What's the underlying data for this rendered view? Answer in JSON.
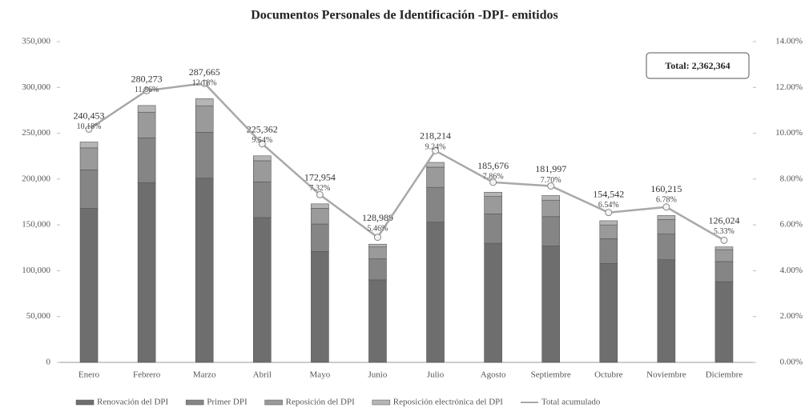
{
  "chart_data": {
    "type": "stacked_bar_line",
    "title": "Documentos Personales de Identificación -DPI- emitidos",
    "annotation": "Total: 2,362,364",
    "categories": [
      "Enero",
      "Febrero",
      "Marzo",
      "Abril",
      "Mayo",
      "Junio",
      "Julio",
      "Agosto",
      "Septiembre",
      "Octubre",
      "Noviembre",
      "Diciembre"
    ],
    "series": [
      {
        "name": "Renovación del DPI",
        "color": "#6e6e6e",
        "values": [
          168000,
          196000,
          201000,
          158000,
          121000,
          90000,
          153000,
          130000,
          127000,
          108000,
          112000,
          88000
        ]
      },
      {
        "name": "Primer DPI",
        "color": "#858585",
        "values": [
          42000,
          49000,
          50000,
          39000,
          30000,
          23000,
          38000,
          32000,
          32000,
          27000,
          28000,
          22000
        ]
      },
      {
        "name": "Reposición del DPI",
        "color": "#9a9a9a",
        "values": [
          24000,
          28000,
          29000,
          23000,
          17000,
          13000,
          22000,
          19000,
          18000,
          15000,
          16000,
          13000
        ]
      },
      {
        "name": "Reposición electrónica del DPI",
        "color": "#b5b5b5",
        "values": [
          6453,
          7273,
          7665,
          5362,
          4954,
          2989,
          5214,
          4676,
          4997,
          4542,
          4215,
          3024
        ]
      },
      {
        "name": "Total acumulado",
        "color": "#a8a8a8",
        "axis": "y2",
        "values": [
          10.18,
          11.86,
          12.18,
          9.54,
          7.32,
          5.46,
          9.24,
          7.86,
          7.7,
          6.54,
          6.78,
          5.33
        ],
        "value_labels": [
          "10.18%",
          "11.86%",
          "12.18%",
          "9.54%",
          "7.32%",
          "5.46%",
          "9.24%",
          "7.86%",
          "7.70%",
          "6.54%",
          "6.78%",
          "5.33%"
        ]
      }
    ],
    "total_values": [
      240453,
      280273,
      287665,
      225362,
      172954,
      128989,
      218214,
      185676,
      181997,
      154542,
      160215,
      126024
    ],
    "total_labels": [
      "240,453",
      "280,273",
      "287,665",
      "225,362",
      "172,954",
      "128,989",
      "218,214",
      "185,676",
      "181,997",
      "154,542",
      "160,215",
      "126,024"
    ],
    "ylim": [
      0,
      350000
    ],
    "yticks": [
      {
        "value": 0,
        "label": "0"
      },
      {
        "value": 50000,
        "label": "50,000"
      },
      {
        "value": 100000,
        "label": "100,000"
      },
      {
        "value": 150000,
        "label": "150,000"
      },
      {
        "value": 200000,
        "label": "200,000"
      },
      {
        "value": 250000,
        "label": "250,000"
      },
      {
        "value": 300000,
        "label": "300,000"
      },
      {
        "value": 350000,
        "label": "350,000"
      }
    ],
    "y2lim": [
      0,
      14
    ],
    "y2ticks": [
      {
        "value": 0,
        "label": "0.00%"
      },
      {
        "value": 2,
        "label": "2.00%"
      },
      {
        "value": 4,
        "label": "4.00%"
      },
      {
        "value": 6,
        "label": "6.00%"
      },
      {
        "value": 8,
        "label": "8.00%"
      },
      {
        "value": 10,
        "label": "10.00%"
      },
      {
        "value": 12,
        "label": "12.00%"
      },
      {
        "value": 14,
        "label": "14.00%"
      }
    ],
    "legend": "bottom"
  }
}
